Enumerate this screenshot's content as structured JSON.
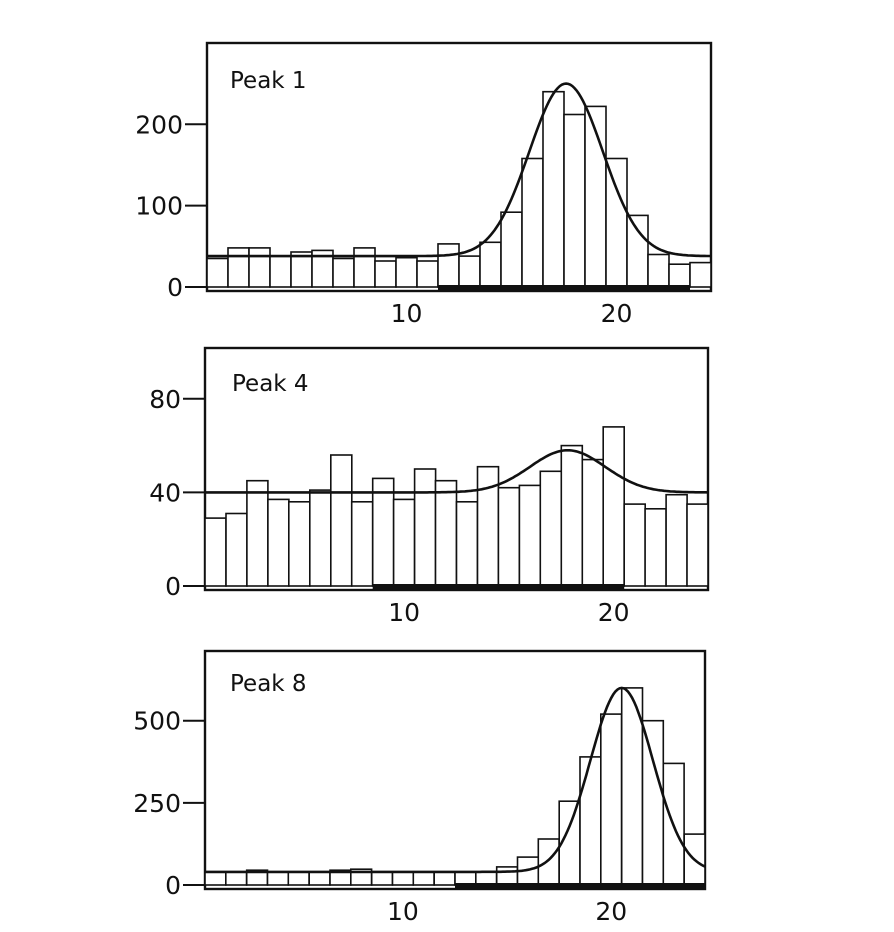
{
  "chart_data": [
    {
      "type": "bar",
      "title": "Peak 1",
      "x": [
        1,
        2,
        3,
        4,
        5,
        6,
        7,
        8,
        9,
        10,
        11,
        12,
        13,
        14,
        15,
        16,
        17,
        18,
        19,
        20,
        21,
        22,
        23,
        24
      ],
      "values": [
        35,
        48,
        48,
        38,
        43,
        45,
        35,
        48,
        32,
        36,
        32,
        53,
        38,
        55,
        92,
        158,
        240,
        212,
        222,
        158,
        88,
        40,
        28,
        30
      ],
      "fit_curve": {
        "baseline": 38,
        "peak_x": 17.6,
        "amplitude": 212,
        "sigma": 1.75
      },
      "x_ticks": [
        10,
        20
      ],
      "y_ticks": [
        0,
        100,
        200
      ],
      "xlim": [
        0.5,
        24.5
      ],
      "ylim": [
        0,
        295
      ],
      "highlight_range": [
        12,
        23
      ],
      "xlabel": "",
      "ylabel": ""
    },
    {
      "type": "bar",
      "title": "Peak 4",
      "x": [
        1,
        2,
        3,
        4,
        5,
        6,
        7,
        8,
        9,
        10,
        11,
        12,
        13,
        14,
        15,
        16,
        17,
        18,
        19,
        20,
        21,
        22,
        23,
        24
      ],
      "values": [
        29,
        31,
        45,
        37,
        36,
        41,
        56,
        36,
        46,
        37,
        50,
        45,
        36,
        51,
        42,
        43,
        49,
        60,
        54,
        68,
        35,
        33,
        39,
        35
      ],
      "fit_curve": {
        "baseline": 40,
        "peak_x": 17.8,
        "amplitude": 18,
        "sigma": 1.8
      },
      "x_ticks": [
        10,
        20
      ],
      "y_ticks": [
        0,
        40,
        80
      ],
      "xlim": [
        0.5,
        24.5
      ],
      "ylim": [
        0,
        100
      ],
      "highlight_range": [
        9,
        20
      ],
      "xlabel": "",
      "ylabel": ""
    },
    {
      "type": "bar",
      "title": "Peak 8",
      "x": [
        1,
        2,
        3,
        4,
        5,
        6,
        7,
        8,
        9,
        10,
        11,
        12,
        13,
        14,
        15,
        16,
        17,
        18,
        19,
        20,
        21,
        22,
        23,
        24
      ],
      "values": [
        40,
        40,
        45,
        40,
        40,
        40,
        45,
        48,
        40,
        40,
        40,
        40,
        40,
        40,
        55,
        85,
        140,
        255,
        390,
        520,
        600,
        500,
        370,
        155
      ],
      "fit_curve": {
        "baseline": 40,
        "peak_x": 20.5,
        "amplitude": 560,
        "sigma": 1.5
      },
      "x_ticks": [
        10,
        20
      ],
      "y_ticks": [
        0,
        250,
        500
      ],
      "xlim": [
        0.5,
        24.5
      ],
      "ylim": [
        0,
        700
      ],
      "highlight_range": [
        13,
        24
      ],
      "xlabel": "",
      "ylabel": ""
    }
  ]
}
